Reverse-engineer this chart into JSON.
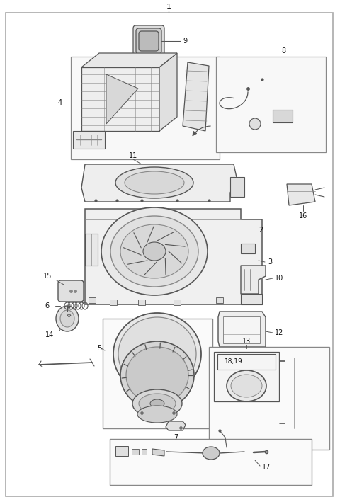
{
  "fig_width": 4.8,
  "fig_height": 7.09,
  "dpi": 100,
  "bg": "#ffffff",
  "lc": "#555555",
  "lc2": "#888888",
  "lc3": "#333333"
}
